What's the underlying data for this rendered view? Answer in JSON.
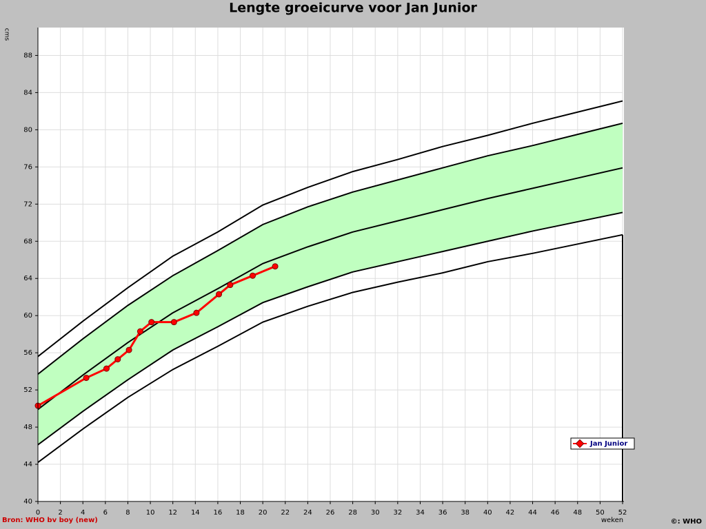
{
  "chart_data": {
    "type": "line",
    "title": "Lengte groeicurve voor Jan Junior",
    "y_label": "cms",
    "x_label": "weken",
    "source": "Bron: WHO bv boy (new)",
    "copyright": "©: WHO",
    "xlim": [
      0,
      52
    ],
    "ylim": [
      40,
      91
    ],
    "xticks": [
      0,
      2,
      4,
      6,
      8,
      10,
      12,
      14,
      16,
      18,
      20,
      22,
      24,
      26,
      28,
      30,
      32,
      34,
      36,
      38,
      40,
      42,
      44,
      46,
      48,
      50,
      52
    ],
    "yticks": [
      40,
      44,
      48,
      52,
      56,
      60,
      64,
      68,
      72,
      76,
      80,
      84,
      88
    ],
    "grid": true,
    "legend": "lower-right",
    "band_color": "#c0ffc0",
    "reference_x": [
      0,
      4,
      8,
      12,
      16,
      20,
      24,
      28,
      32,
      36,
      40,
      44,
      48,
      52
    ],
    "reference_curves": [
      {
        "color": "#000000",
        "values": [
          44.2,
          47.8,
          51.2,
          54.2,
          56.7,
          59.3,
          61.0,
          62.5,
          63.6,
          64.6,
          65.8,
          66.7,
          67.7,
          68.7
        ]
      },
      {
        "color": "#000000",
        "values": [
          46.1,
          49.7,
          53.1,
          56.3,
          58.8,
          61.4,
          63.1,
          64.7,
          65.8,
          66.9,
          68.0,
          69.1,
          70.1,
          71.1
        ]
      },
      {
        "color": "#000000",
        "values": [
          49.9,
          53.6,
          57.1,
          60.3,
          62.9,
          65.6,
          67.4,
          69.0,
          70.2,
          71.4,
          72.6,
          73.7,
          74.8,
          75.9
        ]
      },
      {
        "color": "#000000",
        "values": [
          53.7,
          57.5,
          61.1,
          64.3,
          67.0,
          69.8,
          71.7,
          73.3,
          74.6,
          75.9,
          77.2,
          78.3,
          79.5,
          80.7
        ]
      },
      {
        "color": "#000000",
        "values": [
          55.6,
          59.4,
          63.0,
          66.4,
          69.0,
          71.9,
          73.8,
          75.5,
          76.8,
          78.2,
          79.4,
          80.7,
          81.9,
          83.1
        ]
      }
    ],
    "series": [
      {
        "name": "Jan Junior",
        "color": "#ff0000",
        "x": [
          0,
          4.3,
          6.1,
          7.1,
          8.1,
          9.1,
          10.1,
          12.1,
          14.1,
          16.1,
          17.1,
          19.1,
          21.1
        ],
        "values": [
          50.3,
          53.3,
          54.3,
          55.3,
          56.3,
          58.3,
          59.3,
          59.3,
          60.3,
          62.3,
          63.3,
          64.3,
          65.3
        ]
      }
    ]
  }
}
